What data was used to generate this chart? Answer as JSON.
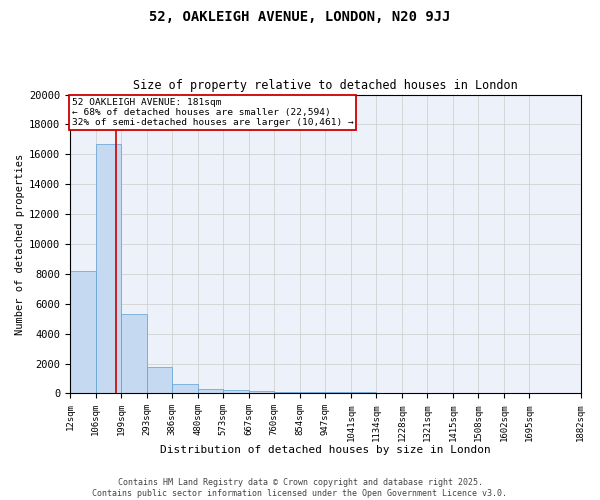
{
  "title1": "52, OAKLEIGH AVENUE, LONDON, N20 9JJ",
  "title2": "Size of property relative to detached houses in London",
  "xlabel": "Distribution of detached houses by size in London",
  "ylabel": "Number of detached properties",
  "bar_color": "#c5d9f0",
  "bar_edge_color": "#5a9fd4",
  "bar_heights": [
    8200,
    16700,
    5350,
    1800,
    650,
    330,
    230,
    170,
    120,
    100,
    80,
    70,
    60,
    50,
    40,
    35,
    30,
    25,
    20
  ],
  "bin_edges": [
    12,
    106,
    199,
    293,
    386,
    480,
    573,
    667,
    760,
    854,
    947,
    1041,
    1134,
    1228,
    1321,
    1415,
    1508,
    1602,
    1695,
    1882
  ],
  "bin_labels": [
    "12sqm",
    "106sqm",
    "199sqm",
    "293sqm",
    "386sqm",
    "480sqm",
    "573sqm",
    "667sqm",
    "760sqm",
    "854sqm",
    "947sqm",
    "1041sqm",
    "1134sqm",
    "1228sqm",
    "1321sqm",
    "1415sqm",
    "1508sqm",
    "1602sqm",
    "1695sqm",
    "1882sqm"
  ],
  "vline_x": 181,
  "vline_color": "#cc0000",
  "annotation_text": "52 OAKLEIGH AVENUE: 181sqm\n← 68% of detached houses are smaller (22,594)\n32% of semi-detached houses are larger (10,461) →",
  "annotation_box_color": "#ffffff",
  "annotation_box_edge": "#cc0000",
  "ylim": [
    0,
    20000
  ],
  "yticks": [
    0,
    2000,
    4000,
    6000,
    8000,
    10000,
    12000,
    14000,
    16000,
    18000,
    20000
  ],
  "grid_color": "#cccccc",
  "bg_color": "#edf2fa",
  "footer1": "Contains HM Land Registry data © Crown copyright and database right 2025.",
  "footer2": "Contains public sector information licensed under the Open Government Licence v3.0."
}
